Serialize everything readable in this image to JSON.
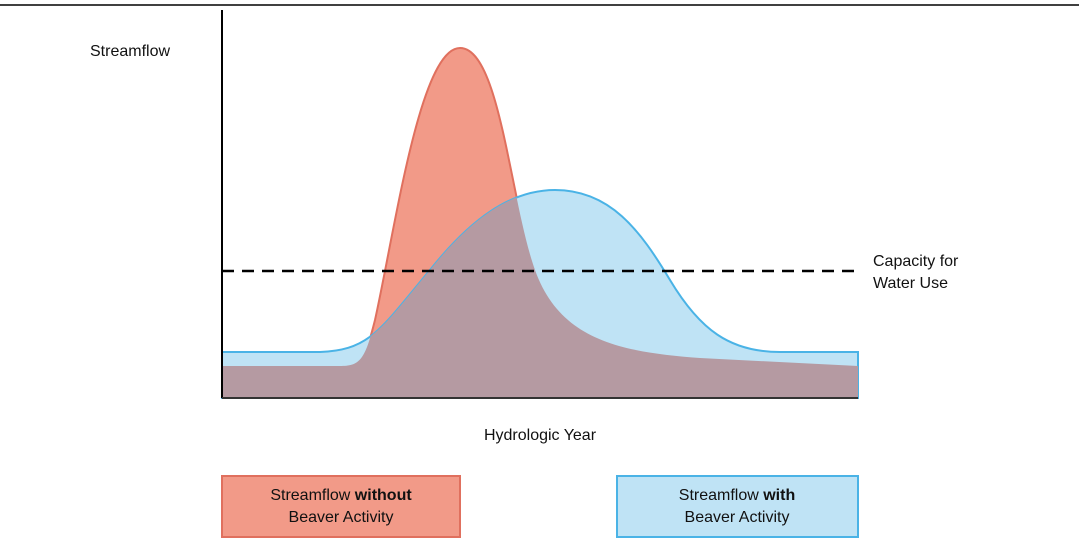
{
  "y_axis_label": "Streamflow",
  "x_axis_label": "Hydrologic Year",
  "threshold_label": {
    "line1": "Capacity for",
    "line2": "Water Use"
  },
  "legend": [
    {
      "before": "Streamflow ",
      "bold": "without",
      "after": "Beaver Activity"
    },
    {
      "before": "Streamflow ",
      "bold": "with",
      "after": "Beaver Activity"
    }
  ]
}
